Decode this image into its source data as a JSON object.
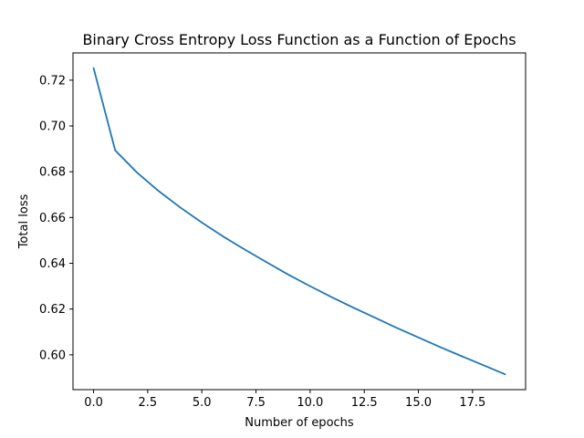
{
  "chart_data": {
    "type": "line",
    "title": "Binary Cross Entropy Loss Function as a Function of Epochs",
    "xlabel": "Number of epochs",
    "ylabel": "Total loss",
    "xlim": [
      -0.95,
      19.95
    ],
    "ylim": [
      0.5848,
      0.7319
    ],
    "xticks": [
      0.0,
      2.5,
      5.0,
      7.5,
      10.0,
      12.5,
      15.0,
      17.5
    ],
    "xtick_labels": [
      "0.0",
      "2.5",
      "5.0",
      "7.5",
      "10.0",
      "12.5",
      "15.0",
      "17.5"
    ],
    "yticks": [
      0.6,
      0.62,
      0.64,
      0.66,
      0.68,
      0.7,
      0.72
    ],
    "ytick_labels": [
      "0.60",
      "0.62",
      "0.64",
      "0.66",
      "0.68",
      "0.70",
      "0.72"
    ],
    "grid": false,
    "series": [
      {
        "color": "#1f77b4",
        "x": [
          0,
          1,
          2,
          3,
          4,
          5,
          6,
          7,
          8,
          9,
          10,
          11,
          12,
          13,
          14,
          15,
          16,
          17,
          18,
          19
        ],
        "y": [
          0.7253,
          0.6893,
          0.6797,
          0.6716,
          0.6644,
          0.6578,
          0.6516,
          0.6459,
          0.6404,
          0.635,
          0.63,
          0.6252,
          0.6206,
          0.6162,
          0.6118,
          0.6076,
          0.6034,
          0.5994,
          0.5955,
          0.5915
        ]
      }
    ]
  }
}
